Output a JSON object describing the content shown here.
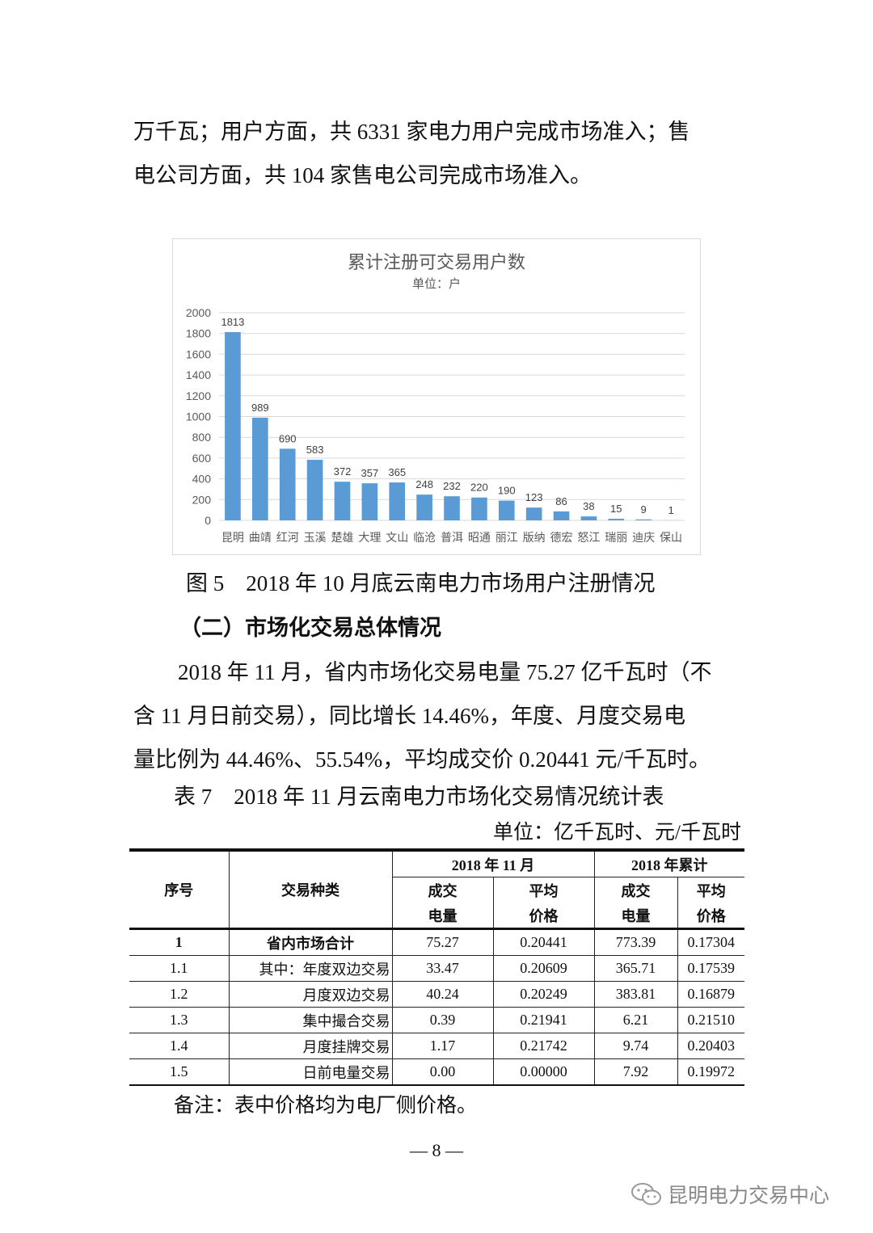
{
  "paragraph1": {
    "lines": [
      "万千瓦；用户方面，共 6331 家电力用户完成市场准入；售",
      "电公司方面，共 104 家售电公司完成市场准入。"
    ]
  },
  "chart_data": {
    "type": "bar",
    "title": "累计注册可交易用户数",
    "subtitle": "单位：户",
    "categories": [
      "昆明",
      "曲靖",
      "红河",
      "玉溪",
      "楚雄",
      "大理",
      "文山",
      "临沧",
      "普洱",
      "昭通",
      "丽江",
      "版纳",
      "德宏",
      "怒江",
      "瑞丽",
      "迪庆",
      "保山"
    ],
    "values": [
      1813,
      989,
      690,
      583,
      372,
      357,
      365,
      248,
      232,
      220,
      190,
      123,
      86,
      38,
      15,
      9,
      1
    ],
    "ylim": [
      0,
      2000
    ],
    "yticks": [
      0,
      200,
      400,
      600,
      800,
      1000,
      1200,
      1400,
      1600,
      1800,
      2000
    ],
    "grid": true,
    "data_labels": true,
    "bar_color": "#5b9bd5"
  },
  "figure_caption": "图 5　2018 年 10 月底云南电力市场用户注册情况",
  "section_heading": "（二）市场化交易总体情况",
  "paragraph2": {
    "lines": [
      "2018 年 11 月，省内市场化交易电量 75.27 亿千瓦时（不",
      "含 11 月日前交易），同比增长 14.46%，年度、月度交易电",
      "量比例为 44.46%、55.54%，平均成交价 0.20441 元/千瓦时。"
    ]
  },
  "table": {
    "title": "表 7　2018 年 11 月云南电力市场化交易情况统计表",
    "unit": "单位：亿千瓦时、元/千瓦时",
    "headers": {
      "no": "序号",
      "type": "交易种类",
      "month": "2018 年 11 月",
      "cumulative": "2018 年累计",
      "volume_1": "成交",
      "volume_2": "电量",
      "price_1": "平均",
      "price_2": "价格"
    },
    "rows": [
      {
        "no": "1",
        "type": "省内市场合计",
        "m_vol": "75.27",
        "m_price": "0.20441",
        "c_vol": "773.39",
        "c_price": "0.17304"
      },
      {
        "no": "1.1",
        "type": "其中：年度双边交易",
        "m_vol": "33.47",
        "m_price": "0.20609",
        "c_vol": "365.71",
        "c_price": "0.17539"
      },
      {
        "no": "1.2",
        "type": "月度双边交易",
        "m_vol": "40.24",
        "m_price": "0.20249",
        "c_vol": "383.81",
        "c_price": "0.16879"
      },
      {
        "no": "1.3",
        "type": "集中撮合交易",
        "m_vol": "0.39",
        "m_price": "0.21941",
        "c_vol": "6.21",
        "c_price": "0.21510"
      },
      {
        "no": "1.4",
        "type": "月度挂牌交易",
        "m_vol": "1.17",
        "m_price": "0.21742",
        "c_vol": "9.74",
        "c_price": "0.20403"
      },
      {
        "no": "1.5",
        "type": "日前电量交易",
        "m_vol": "0.00",
        "m_price": "0.00000",
        "c_vol": "7.92",
        "c_price": "0.19972"
      }
    ],
    "note": "备注：表中价格均为电厂侧价格。"
  },
  "page_number": "— 8 —",
  "watermark": {
    "text": "昆明电力交易中心",
    "icon": "wechat-icon"
  }
}
